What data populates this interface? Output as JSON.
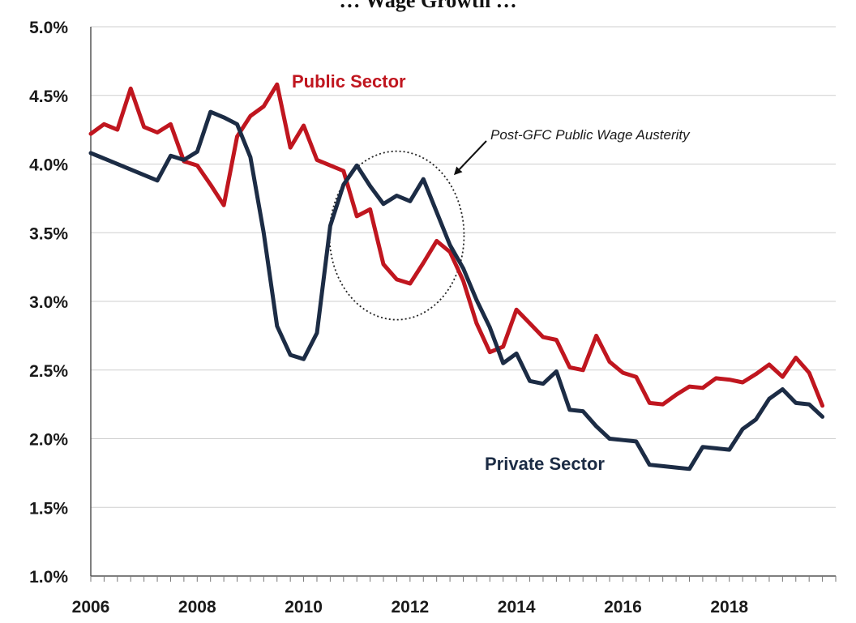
{
  "title": "… Wage Growth …",
  "chart_data": {
    "type": "line",
    "title": "",
    "xlabel": "",
    "ylabel": "",
    "xlim": [
      2006,
      2020
    ],
    "ylim": [
      1.0,
      5.0
    ],
    "y_ticks": [
      "1.0%",
      "1.5%",
      "2.0%",
      "2.5%",
      "3.0%",
      "3.5%",
      "4.0%",
      "4.5%",
      "5.0%"
    ],
    "x_ticks": [
      "2006",
      "2008",
      "2010",
      "2012",
      "2014",
      "2016",
      "2018"
    ],
    "grid": true,
    "legend": "none",
    "series": [
      {
        "name": "Public Sector",
        "color": "#c0161f",
        "points": [
          [
            2006.0,
            4.22
          ],
          [
            2006.25,
            4.29
          ],
          [
            2006.5,
            4.25
          ],
          [
            2006.75,
            4.55
          ],
          [
            2007.0,
            4.27
          ],
          [
            2007.25,
            4.23
          ],
          [
            2007.5,
            4.29
          ],
          [
            2007.75,
            4.02
          ],
          [
            2008.0,
            3.99
          ],
          [
            2008.25,
            3.85
          ],
          [
            2008.5,
            3.7
          ],
          [
            2008.75,
            4.2
          ],
          [
            2009.0,
            4.35
          ],
          [
            2009.25,
            4.42
          ],
          [
            2009.5,
            4.58
          ],
          [
            2009.75,
            4.12
          ],
          [
            2010.0,
            4.28
          ],
          [
            2010.25,
            4.03
          ],
          [
            2010.5,
            3.99
          ],
          [
            2010.75,
            3.95
          ],
          [
            2011.0,
            3.62
          ],
          [
            2011.25,
            3.67
          ],
          [
            2011.5,
            3.27
          ],
          [
            2011.75,
            3.16
          ],
          [
            2012.0,
            3.13
          ],
          [
            2012.25,
            3.28
          ],
          [
            2012.5,
            3.44
          ],
          [
            2012.75,
            3.36
          ],
          [
            2013.0,
            3.15
          ],
          [
            2013.25,
            2.84
          ],
          [
            2013.5,
            2.63
          ],
          [
            2013.75,
            2.67
          ],
          [
            2014.0,
            2.94
          ],
          [
            2014.25,
            2.84
          ],
          [
            2014.5,
            2.74
          ],
          [
            2014.75,
            2.72
          ],
          [
            2015.0,
            2.52
          ],
          [
            2015.25,
            2.5
          ],
          [
            2015.5,
            2.75
          ],
          [
            2015.75,
            2.56
          ],
          [
            2016.0,
            2.48
          ],
          [
            2016.25,
            2.45
          ],
          [
            2016.5,
            2.26
          ],
          [
            2016.75,
            2.25
          ],
          [
            2017.0,
            2.32
          ],
          [
            2017.25,
            2.38
          ],
          [
            2017.5,
            2.37
          ],
          [
            2017.75,
            2.44
          ],
          [
            2018.0,
            2.43
          ],
          [
            2018.25,
            2.41
          ],
          [
            2018.5,
            2.47
          ],
          [
            2018.75,
            2.54
          ],
          [
            2019.0,
            2.45
          ],
          [
            2019.25,
            2.59
          ],
          [
            2019.5,
            2.48
          ],
          [
            2019.75,
            2.24
          ]
        ]
      },
      {
        "name": "Private Sector",
        "color": "#1c2c45",
        "points": [
          [
            2006.0,
            4.08
          ],
          [
            2007.25,
            3.88
          ],
          [
            2007.5,
            4.06
          ],
          [
            2007.75,
            4.03
          ],
          [
            2008.0,
            4.09
          ],
          [
            2008.25,
            4.38
          ],
          [
            2008.5,
            4.34
          ],
          [
            2008.75,
            4.29
          ],
          [
            2009.0,
            4.05
          ],
          [
            2009.25,
            3.5
          ],
          [
            2009.5,
            2.82
          ],
          [
            2009.75,
            2.61
          ],
          [
            2010.0,
            2.58
          ],
          [
            2010.25,
            2.77
          ],
          [
            2010.5,
            3.55
          ],
          [
            2010.75,
            3.85
          ],
          [
            2011.0,
            3.99
          ],
          [
            2011.25,
            3.84
          ],
          [
            2011.5,
            3.71
          ],
          [
            2011.75,
            3.77
          ],
          [
            2012.0,
            3.73
          ],
          [
            2012.25,
            3.89
          ],
          [
            2012.5,
            3.65
          ],
          [
            2012.75,
            3.41
          ],
          [
            2013.0,
            3.24
          ],
          [
            2013.25,
            3.01
          ],
          [
            2013.5,
            2.81
          ],
          [
            2013.75,
            2.55
          ],
          [
            2014.0,
            2.62
          ],
          [
            2014.25,
            2.42
          ],
          [
            2014.5,
            2.4
          ],
          [
            2014.75,
            2.49
          ],
          [
            2015.0,
            2.21
          ],
          [
            2015.25,
            2.2
          ],
          [
            2015.5,
            2.09
          ],
          [
            2015.75,
            2.0
          ],
          [
            2016.0,
            1.99
          ],
          [
            2016.25,
            1.98
          ],
          [
            2016.5,
            1.81
          ],
          [
            2016.75,
            1.8
          ],
          [
            2017.0,
            1.79
          ],
          [
            2017.25,
            1.78
          ],
          [
            2017.5,
            1.94
          ],
          [
            2017.75,
            1.93
          ],
          [
            2018.0,
            1.92
          ],
          [
            2018.25,
            2.07
          ],
          [
            2018.5,
            2.14
          ],
          [
            2018.75,
            2.29
          ],
          [
            2019.0,
            2.36
          ],
          [
            2019.25,
            2.26
          ],
          [
            2019.5,
            2.25
          ],
          [
            2019.75,
            2.16
          ]
        ]
      }
    ],
    "annotations": [
      {
        "text": "Post-GFC Public Wage Austerity"
      },
      {
        "text": "Public Sector",
        "color": "#c0161f"
      },
      {
        "text": "Private Sector",
        "color": "#1c2c45"
      }
    ]
  }
}
